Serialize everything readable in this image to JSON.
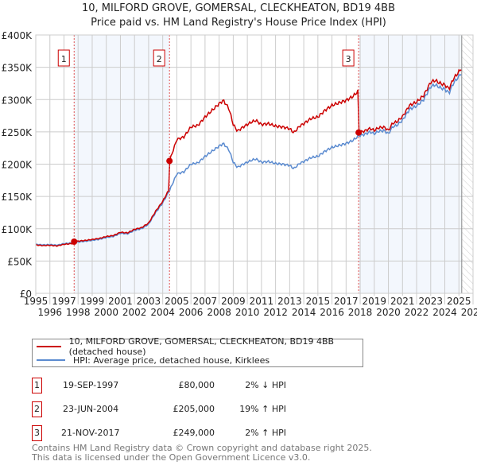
{
  "chart_data": {
    "type": "line",
    "title": "10, MILFORD GROVE, GOMERSAL, CLECKHEATON, BD19 4BB",
    "subtitle": "Price paid vs. HM Land Registry's House Price Index (HPI)",
    "xlim": [
      1995,
      2026
    ],
    "ylim": [
      0,
      400000
    ],
    "x_ticks": [
      "1995",
      "1996",
      "1997",
      "1998",
      "1999",
      "2000",
      "2001",
      "2002",
      "2003",
      "2004",
      "2005",
      "2006",
      "2007",
      "2008",
      "2009",
      "2010",
      "2011",
      "2012",
      "2013",
      "2014",
      "2015",
      "2016",
      "2017",
      "2018",
      "2019",
      "2020",
      "2021",
      "2022",
      "2023",
      "2024",
      "2025",
      "2026"
    ],
    "y_ticks": [
      {
        "v": 0,
        "label": "£0"
      },
      {
        "v": 50000,
        "label": "£50K"
      },
      {
        "v": 100000,
        "label": "£100K"
      },
      {
        "v": 150000,
        "label": "£150K"
      },
      {
        "v": 200000,
        "label": "£200K"
      },
      {
        "v": 250000,
        "label": "£250K"
      },
      {
        "v": 300000,
        "label": "£300K"
      },
      {
        "v": 350000,
        "label": "£350K"
      },
      {
        "v": 400000,
        "label": "£400K"
      }
    ],
    "grid": true,
    "shaded_ranges": [
      [
        1997.72,
        2004.48
      ],
      [
        2017.89,
        2025.2
      ]
    ],
    "forecast_hatch_from": 2025.2,
    "series": [
      {
        "name": "HPI: Average price, detached house, Kirklees",
        "color": "#5b8bd0",
        "x": [
          1995,
          1995.5,
          1996,
          1996.5,
          1997,
          1997.5,
          1998,
          1998.5,
          1999,
          1999.5,
          2000,
          2000.5,
          2001,
          2001.5,
          2002,
          2002.5,
          2003,
          2003.5,
          2004,
          2004.5,
          2005,
          2005.5,
          2006,
          2006.5,
          2007,
          2007.5,
          2008,
          2008.3,
          2008.7,
          2009,
          2009.3,
          2009.7,
          2010,
          2010.3,
          2010.6,
          2011,
          2011.5,
          2012,
          2012.5,
          2013,
          2013.3,
          2013.7,
          2014,
          2014.5,
          2015,
          2015.5,
          2016,
          2016.5,
          2017,
          2017.5,
          2017.9,
          2018.3,
          2018.7,
          2019,
          2019.3,
          2019.7,
          2020,
          2020.3,
          2020.6,
          2021,
          2021.5,
          2022,
          2022.5,
          2023,
          2023.3,
          2023.7,
          2024,
          2024.3,
          2024.6,
          2025,
          2025.2
        ],
        "y": [
          76000,
          75000,
          75500,
          74500,
          77000,
          78000,
          79500,
          80500,
          82000,
          83500,
          86500,
          88000,
          93000,
          92000,
          97500,
          100000,
          107000,
          125000,
          140000,
          160000,
          185000,
          188000,
          200000,
          202000,
          212000,
          220000,
          228000,
          232000,
          222000,
          203000,
          195000,
          200000,
          203000,
          206000,
          208000,
          203000,
          204000,
          201000,
          200000,
          198000,
          193000,
          201000,
          204000,
          210000,
          212000,
          220000,
          226000,
          229000,
          232000,
          237000,
          244000,
          246000,
          250000,
          247000,
          251000,
          252000,
          247000,
          258000,
          260000,
          268000,
          285000,
          290000,
          300000,
          320000,
          323000,
          318000,
          316000,
          310000,
          325000,
          336000,
          342000
        ]
      },
      {
        "name": "10, MILFORD GROVE, GOMERSAL, CLECKHEATON, BD19 4BB (detached house)",
        "color": "#cc0000"
      }
    ],
    "sales": [
      {
        "n": "1",
        "x": 1997.72,
        "price": 80000,
        "date": "19-SEP-1997",
        "price_label": "£80,000",
        "hpi": "2% ↓ HPI"
      },
      {
        "n": "2",
        "x": 2004.48,
        "price": 205000,
        "date": "23-JUN-2004",
        "price_label": "£205,000",
        "hpi": "19% ↑ HPI"
      },
      {
        "n": "3",
        "x": 2017.89,
        "price": 249000,
        "date": "21-NOV-2017",
        "price_label": "£249,000",
        "hpi": "2% ↑ HPI"
      }
    ]
  },
  "title_line1": "10, MILFORD GROVE, GOMERSAL, CLECKHEATON, BD19 4BB",
  "title_line2": "Price paid vs. HM Land Registry's House Price Index (HPI)",
  "legend": {
    "red": "10, MILFORD GROVE, GOMERSAL, CLECKHEATON, BD19 4BB (detached house)",
    "blue": "HPI: Average price, detached house, Kirklees",
    "red_color": "#cc0000",
    "blue_color": "#5b8bd0"
  },
  "footer": {
    "line1": "Contains HM Land Registry data © Crown copyright and database right 2025.",
    "line2": "This data is licensed under the Open Government Licence v3.0."
  }
}
